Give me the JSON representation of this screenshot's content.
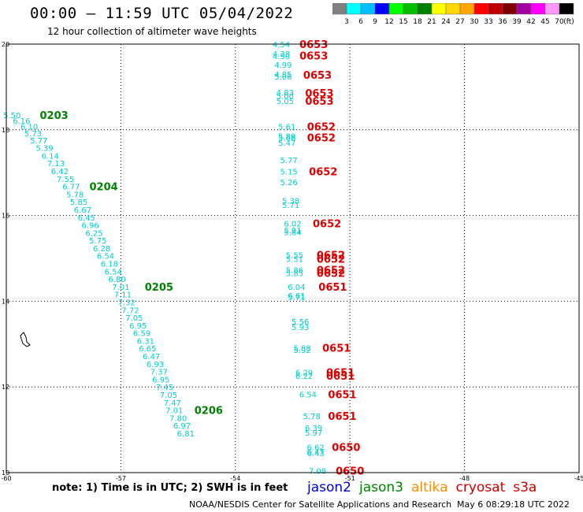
{
  "header": {
    "title": "00:00 – 11:59 UTC 05/04/2022",
    "subtitle": "12 hour collection of altimeter wave heights"
  },
  "colorbar": {
    "labels": [
      "3",
      "6",
      "9",
      "12",
      "15",
      "18",
      "21",
      "24",
      "27",
      "30",
      "33",
      "36",
      "39",
      "42",
      "45",
      "70"
    ],
    "unit": "(ft)",
    "colors": [
      "#808080",
      "#00ffff",
      "#00bfff",
      "#0000ff",
      "#00ff00",
      "#00c000",
      "#008000",
      "#ffff00",
      "#ffd700",
      "#ffa500",
      "#ff0000",
      "#c00000",
      "#800000",
      "#a000a0",
      "#ff00ff",
      "#ff99ff",
      "#000000"
    ]
  },
  "chart_data": {
    "type": "scatter",
    "xlim": [
      -60,
      -45
    ],
    "ylim": [
      10,
      20
    ],
    "x_ticks": [
      "-60",
      "-57",
      "-54",
      "-51",
      "-48",
      "-45"
    ],
    "y_ticks": [
      "20",
      "18",
      "16",
      "14",
      "12",
      "10"
    ],
    "x_tick_values": [
      -60,
      -57,
      -54,
      -51,
      -48,
      -45
    ],
    "y_tick_values": [
      20,
      18,
      16,
      14,
      12,
      10
    ],
    "grid": true,
    "series": [
      {
        "name": "jason3",
        "value_color": "#00ced1",
        "points": [
          {
            "x": -59.85,
            "y": 18.35,
            "v": "5.50"
          },
          {
            "x": -59.6,
            "y": 18.22,
            "v": "6.16"
          },
          {
            "x": -59.4,
            "y": 18.08,
            "v": "6.10"
          },
          {
            "x": -59.3,
            "y": 17.92,
            "v": "5.73"
          },
          {
            "x": -59.15,
            "y": 17.76,
            "v": "5.77"
          },
          {
            "x": -59.0,
            "y": 17.58,
            "v": "5.39"
          },
          {
            "x": -58.85,
            "y": 17.4,
            "v": "6.14"
          },
          {
            "x": -58.7,
            "y": 17.22,
            "v": "7.13"
          },
          {
            "x": -58.6,
            "y": 17.04,
            "v": "6.42"
          },
          {
            "x": -58.45,
            "y": 16.86,
            "v": "7.55"
          },
          {
            "x": -58.3,
            "y": 16.68,
            "v": "6.77"
          },
          {
            "x": -58.2,
            "y": 16.5,
            "v": "5.78"
          },
          {
            "x": -58.1,
            "y": 16.32,
            "v": "5.85"
          },
          {
            "x": -58.0,
            "y": 16.14,
            "v": "6.67"
          },
          {
            "x": -57.9,
            "y": 15.96,
            "v": "6.45"
          },
          {
            "x": -57.8,
            "y": 15.78,
            "v": "6.96"
          },
          {
            "x": -57.7,
            "y": 15.6,
            "v": "6.25"
          },
          {
            "x": -57.6,
            "y": 15.42,
            "v": "5.75"
          },
          {
            "x": -57.5,
            "y": 15.24,
            "v": "6.28"
          },
          {
            "x": -57.4,
            "y": 15.06,
            "v": "6.54"
          },
          {
            "x": -57.3,
            "y": 14.88,
            "v": "6.18"
          },
          {
            "x": -57.2,
            "y": 14.7,
            "v": "6.54"
          },
          {
            "x": -57.1,
            "y": 14.52,
            "v": "6.80"
          },
          {
            "x": -57.0,
            "y": 14.34,
            "v": "7.01"
          },
          {
            "x": -56.95,
            "y": 14.16,
            "v": "7.11"
          },
          {
            "x": -56.85,
            "y": 13.98,
            "v": "7.32"
          },
          {
            "x": -56.75,
            "y": 13.8,
            "v": "7.72"
          },
          {
            "x": -56.65,
            "y": 13.62,
            "v": "7.05"
          },
          {
            "x": -56.55,
            "y": 13.44,
            "v": "6.95"
          },
          {
            "x": -56.45,
            "y": 13.26,
            "v": "6.59"
          },
          {
            "x": -56.35,
            "y": 13.08,
            "v": "6.31"
          },
          {
            "x": -56.3,
            "y": 12.9,
            "v": "6.65"
          },
          {
            "x": -56.2,
            "y": 12.72,
            "v": "6.47"
          },
          {
            "x": -56.1,
            "y": 12.54,
            "v": "6.93"
          },
          {
            "x": -56.0,
            "y": 12.36,
            "v": "7.37"
          },
          {
            "x": -55.95,
            "y": 12.18,
            "v": "6.95"
          },
          {
            "x": -55.85,
            "y": 12.0,
            "v": "7.45"
          },
          {
            "x": -55.75,
            "y": 11.82,
            "v": "7.05"
          },
          {
            "x": -55.65,
            "y": 11.64,
            "v": "7.47"
          },
          {
            "x": -55.6,
            "y": 11.46,
            "v": "7.01"
          },
          {
            "x": -55.5,
            "y": 11.28,
            "v": "7.80"
          },
          {
            "x": -55.4,
            "y": 11.1,
            "v": "6.97"
          },
          {
            "x": -55.3,
            "y": 10.92,
            "v": "6.81"
          }
        ],
        "time_labels": [
          {
            "x": -58.75,
            "y": 18.35,
            "t": "0203"
          },
          {
            "x": -57.45,
            "y": 16.68,
            "t": "0204"
          },
          {
            "x": -56.0,
            "y": 14.34,
            "t": "0205"
          },
          {
            "x": -54.7,
            "y": 11.46,
            "t": "0206"
          }
        ]
      },
      {
        "name": "cryosat",
        "value_color": "#00ced1",
        "points": [
          {
            "x": -52.8,
            "y": 20.0,
            "v": "4.54"
          },
          {
            "x": -52.8,
            "y": 19.78,
            "v": "4.38"
          },
          {
            "x": -52.8,
            "y": 19.72,
            "v": "4.50"
          },
          {
            "x": -52.75,
            "y": 19.52,
            "v": "4.99"
          },
          {
            "x": -52.75,
            "y": 19.3,
            "v": "4.85"
          },
          {
            "x": -52.75,
            "y": 19.25,
            "v": "5.06"
          },
          {
            "x": -52.7,
            "y": 18.88,
            "v": "4.83"
          },
          {
            "x": -52.7,
            "y": 18.8,
            "v": "5.00"
          },
          {
            "x": -52.7,
            "y": 18.68,
            "v": "5.05"
          },
          {
            "x": -52.65,
            "y": 18.08,
            "v": "5.61"
          },
          {
            "x": -52.65,
            "y": 17.86,
            "v": "5.89"
          },
          {
            "x": -52.65,
            "y": 17.82,
            "v": "5.66"
          },
          {
            "x": -52.65,
            "y": 17.7,
            "v": "5.47"
          },
          {
            "x": -52.6,
            "y": 17.3,
            "v": "5.77"
          },
          {
            "x": -52.6,
            "y": 17.03,
            "v": "5.15"
          },
          {
            "x": -52.6,
            "y": 16.78,
            "v": "5.26"
          },
          {
            "x": -52.55,
            "y": 16.35,
            "v": "5.38"
          },
          {
            "x": -52.55,
            "y": 16.25,
            "v": "5.71"
          },
          {
            "x": -52.5,
            "y": 15.82,
            "v": "6.02"
          },
          {
            "x": -52.5,
            "y": 15.66,
            "v": "5.91"
          },
          {
            "x": -52.5,
            "y": 15.62,
            "v": "5.84"
          },
          {
            "x": -52.45,
            "y": 15.08,
            "v": "5.55"
          },
          {
            "x": -52.45,
            "y": 14.99,
            "v": "5.51"
          },
          {
            "x": -52.45,
            "y": 14.73,
            "v": "5.86"
          },
          {
            "x": -52.45,
            "y": 14.66,
            "v": "5.85"
          },
          {
            "x": -52.4,
            "y": 14.34,
            "v": "6.04"
          },
          {
            "x": -52.4,
            "y": 14.14,
            "v": "6.61"
          },
          {
            "x": -52.4,
            "y": 14.1,
            "v": "5.71"
          },
          {
            "x": -52.3,
            "y": 13.53,
            "v": "5.56"
          },
          {
            "x": -52.3,
            "y": 13.4,
            "v": "5.93"
          },
          {
            "x": -52.25,
            "y": 12.91,
            "v": "5.88"
          },
          {
            "x": -52.25,
            "y": 12.87,
            "v": "5.92"
          },
          {
            "x": -52.2,
            "y": 12.34,
            "v": "6.29"
          },
          {
            "x": -52.2,
            "y": 12.26,
            "v": "6.22"
          },
          {
            "x": -52.1,
            "y": 11.83,
            "v": "6.54"
          },
          {
            "x": -52.0,
            "y": 11.32,
            "v": "5.78"
          },
          {
            "x": -51.95,
            "y": 11.05,
            "v": "6.39"
          },
          {
            "x": -51.95,
            "y": 10.94,
            "v": "5.97"
          },
          {
            "x": -51.9,
            "y": 10.6,
            "v": "6.62"
          },
          {
            "x": -51.9,
            "y": 10.5,
            "v": "6.47"
          },
          {
            "x": -51.9,
            "y": 10.46,
            "v": "6.43"
          },
          {
            "x": -51.85,
            "y": 10.05,
            "v": "7.08"
          }
        ],
        "time_labels": [
          {
            "x": -51.95,
            "y": 20.0,
            "t": "0653"
          },
          {
            "x": -51.95,
            "y": 19.73,
            "t": "0653"
          },
          {
            "x": -51.85,
            "y": 19.28,
            "t": "0653"
          },
          {
            "x": -51.8,
            "y": 18.86,
            "t": "0653"
          },
          {
            "x": -51.8,
            "y": 18.68,
            "t": "0653"
          },
          {
            "x": -51.75,
            "y": 18.08,
            "t": "0652"
          },
          {
            "x": -51.75,
            "y": 17.82,
            "t": "0652"
          },
          {
            "x": -51.7,
            "y": 17.03,
            "t": "0652"
          },
          {
            "x": -51.6,
            "y": 15.82,
            "t": "0652"
          },
          {
            "x": -51.5,
            "y": 15.08,
            "t": "0652"
          },
          {
            "x": -51.5,
            "y": 14.99,
            "t": "0652"
          },
          {
            "x": -51.5,
            "y": 14.73,
            "t": "0652"
          },
          {
            "x": -51.5,
            "y": 14.66,
            "t": "0652"
          },
          {
            "x": -51.45,
            "y": 14.34,
            "t": "0651"
          },
          {
            "x": -51.35,
            "y": 12.91,
            "t": "0651"
          },
          {
            "x": -51.25,
            "y": 12.34,
            "t": "0651"
          },
          {
            "x": -51.25,
            "y": 12.26,
            "t": "0651"
          },
          {
            "x": -51.2,
            "y": 11.83,
            "t": "0651"
          },
          {
            "x": -51.2,
            "y": 11.32,
            "t": "0651"
          },
          {
            "x": -51.1,
            "y": 10.6,
            "t": "0650"
          },
          {
            "x": -51.0,
            "y": 10.05,
            "t": "0650"
          }
        ]
      }
    ]
  },
  "note": "note: 1) Time is in UTC; 2) SWH is in feet",
  "legend": [
    {
      "name": "jason2",
      "color": "#0000cc"
    },
    {
      "name": "jason3",
      "color": "#008000"
    },
    {
      "name": "altika",
      "color": "#ff8c00"
    },
    {
      "name": "cryosat",
      "color": "#cc0000"
    },
    {
      "name": "s3a",
      "color": "#cc0000"
    }
  ],
  "footer": {
    "source": "NOAA/NESDIS Center for Satellite Applications and Research",
    "timestamp": "May  6 08:29:18 UTC 2022"
  }
}
